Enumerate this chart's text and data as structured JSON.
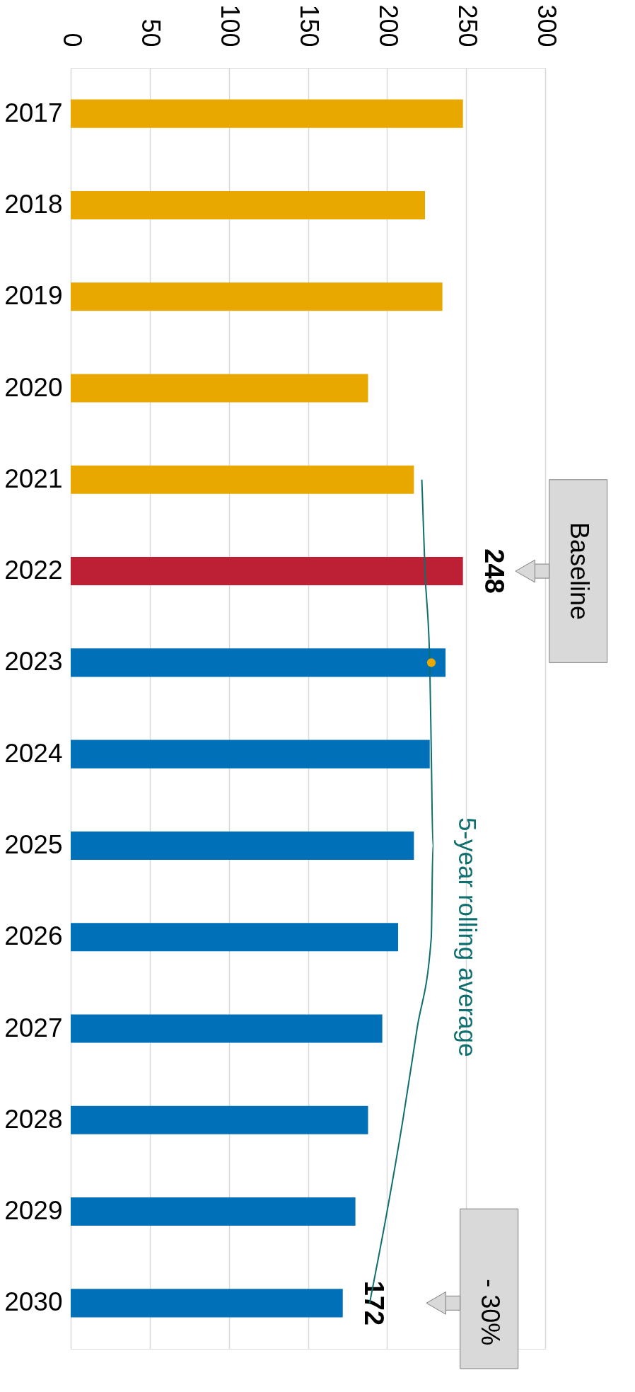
{
  "chart_data": {
    "type": "bar",
    "orientation": "horizontal",
    "categories": [
      "2017",
      "2018",
      "2019",
      "2020",
      "2021",
      "2022",
      "2023",
      "2024",
      "2025",
      "2026",
      "2027",
      "2028",
      "2029",
      "2030"
    ],
    "series": [
      {
        "values": [
          248,
          224,
          235,
          188,
          217,
          248,
          237,
          227,
          217,
          207,
          197,
          188,
          180,
          172
        ],
        "colors": [
          "#e8a800",
          "#e8a800",
          "#e8a800",
          "#e8a800",
          "#e8a800",
          "#bd2035",
          "#0070b8",
          "#0070b8",
          "#0070b8",
          "#0070b8",
          "#0070b8",
          "#0070b8",
          "#0070b8",
          "#0070b8"
        ],
        "value_labels": [
          null,
          null,
          null,
          null,
          null,
          "248",
          null,
          null,
          null,
          null,
          null,
          null,
          null,
          "172"
        ]
      },
      {
        "type": "line",
        "name": "5-year rolling average",
        "color": "#0f6e6e",
        "values": [
          null,
          null,
          null,
          null,
          222,
          224,
          227,
          228,
          229,
          228,
          219,
          210,
          200,
          189
        ]
      },
      {
        "type": "scatter",
        "color": "#e8a800",
        "values": [
          null,
          null,
          null,
          null,
          null,
          null,
          228,
          null,
          null,
          null,
          null,
          null,
          null,
          null
        ]
      }
    ],
    "annotations": [
      "Baseline",
      "- 30%"
    ],
    "xlim": [
      0,
      300
    ],
    "xticks": [
      0,
      50,
      100,
      150,
      200,
      250,
      300
    ],
    "grid": "x"
  }
}
